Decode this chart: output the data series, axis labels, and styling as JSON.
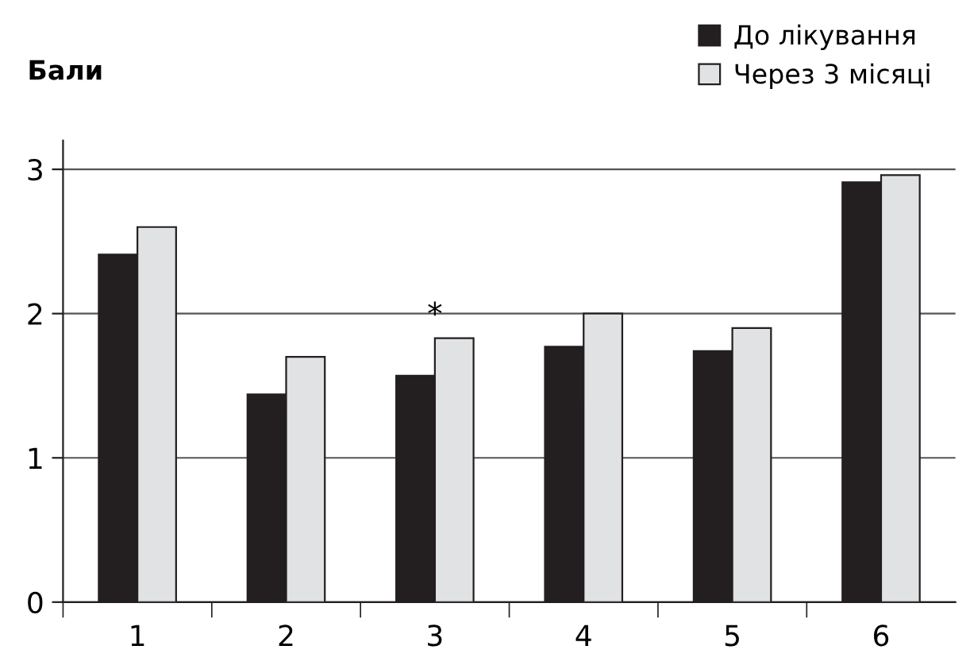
{
  "chart_data": {
    "type": "bar",
    "ylabel": "Бали",
    "categories": [
      "1",
      "2",
      "3",
      "4",
      "5",
      "6"
    ],
    "series": [
      {
        "name": "До лікування",
        "color": "#231f20",
        "values": [
          2.41,
          1.44,
          1.57,
          1.77,
          1.74,
          2.91
        ]
      },
      {
        "name": "Через 3 місяці",
        "color": "#e1e2e4",
        "values": [
          2.6,
          1.7,
          1.83,
          2.0,
          1.9,
          2.96
        ]
      }
    ],
    "ylim": [
      0,
      3.2
    ],
    "yticks": [
      0,
      1,
      2,
      3
    ],
    "grid": "y",
    "legend": "top right",
    "annotations": [
      {
        "text": "*",
        "x": "3",
        "y": 1.88
      }
    ]
  }
}
